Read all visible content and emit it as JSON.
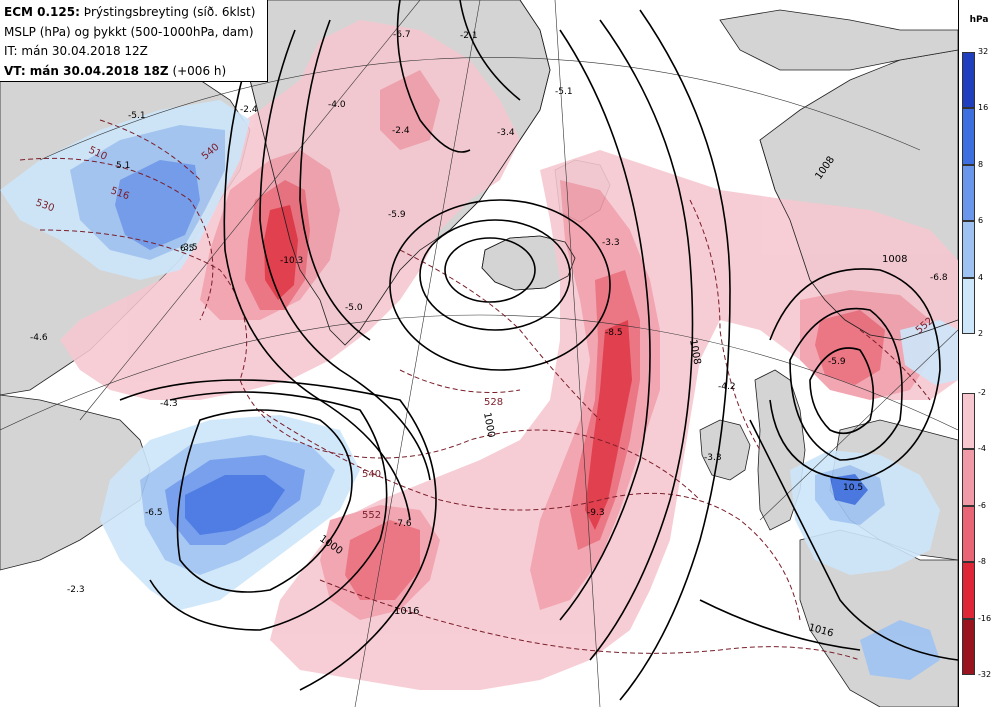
{
  "header": {
    "model": "ECM 0.125:",
    "title_rest": "Þrýstingsbreyting (síð. 6klst)",
    "line2": "MSLP (hPa) og þykkt (500-1000hPa, dam)",
    "line3": "IT: mán 30.04.2018 12Z",
    "line4_bold": "VT: mán 30.04.2018 18Z",
    "line4_rest": "(+006 h)"
  },
  "colorbar": {
    "unit": "hPa",
    "positive": {
      "ticks": [
        "32",
        "16",
        "8",
        "6",
        "4",
        "2"
      ],
      "colors": [
        "#1f3fbf",
        "#3d6fe0",
        "#6a96ec",
        "#9ec3f2",
        "#cde6fa"
      ]
    },
    "negative": {
      "ticks": [
        "-2",
        "-4",
        "-6",
        "-8",
        "-16",
        "-32"
      ],
      "colors": [
        "#f7c7d0",
        "#f09aa8",
        "#e96575",
        "#de2637",
        "#9a1420"
      ]
    }
  },
  "map": {
    "colors": {
      "land": "#d4d4d4",
      "pressure_contour": "#000000",
      "thickness_contour": "#7a1e2a"
    },
    "change_labels": [
      "-6.7",
      "-2.1",
      "-5.1",
      "-2.4",
      "-4.0",
      "-2.4",
      "-3.4",
      "-5.1",
      "-5.9",
      "-10.3",
      "-3.5",
      "-3.3",
      "-5.0",
      "-4.6",
      "-4.3",
      "-8.5",
      "-4.2",
      "-6.8",
      "-5.9",
      "-3.3",
      "-9.3",
      "-7.6",
      "-2.3",
      "-6.5"
    ],
    "positive_labels": [
      "5.1",
      "6.5",
      "10.5"
    ],
    "pressure_labels": [
      "1000",
      "1008",
      "1008",
      "1008",
      "1000",
      "1016",
      "1016"
    ],
    "thickness_labels": [
      "510",
      "516",
      "530",
      "540",
      "540",
      "552",
      "552",
      "528"
    ]
  }
}
